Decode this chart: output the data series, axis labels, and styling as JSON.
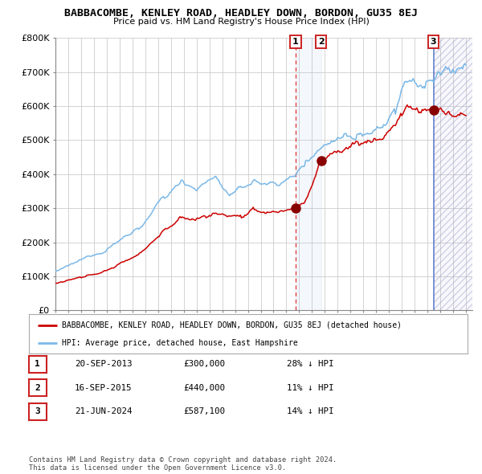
{
  "title": "BABBACOMBE, KENLEY ROAD, HEADLEY DOWN, BORDON, GU35 8EJ",
  "subtitle": "Price paid vs. HM Land Registry's House Price Index (HPI)",
  "ylim": [
    0,
    800000
  ],
  "yticks": [
    0,
    100000,
    200000,
    300000,
    400000,
    500000,
    600000,
    700000,
    800000
  ],
  "ytick_labels": [
    "£0",
    "£100K",
    "£200K",
    "£300K",
    "£400K",
    "£500K",
    "£600K",
    "£700K",
    "£800K"
  ],
  "xlim_start": 1995.0,
  "xlim_end": 2027.5,
  "hpi_color": "#7ab8e8",
  "price_color": "#cc0000",
  "marker_color": "#880000",
  "sale1_year": 2013.72,
  "sale1_price": 300000,
  "sale2_year": 2015.71,
  "sale2_price": 440000,
  "sale3_year": 2024.47,
  "sale3_price": 587100,
  "legend_label1": "BABBACOMBE, KENLEY ROAD, HEADLEY DOWN, BORDON, GU35 8EJ (detached house)",
  "legend_label2": "HPI: Average price, detached house, East Hampshire",
  "table_rows": [
    [
      "1",
      "20-SEP-2013",
      "£300,000",
      "28% ↓ HPI"
    ],
    [
      "2",
      "16-SEP-2015",
      "£440,000",
      "11% ↓ HPI"
    ],
    [
      "3",
      "21-JUN-2024",
      "£587,100",
      "14% ↓ HPI"
    ]
  ],
  "footer": "Contains HM Land Registry data © Crown copyright and database right 2024.\nThis data is licensed under the Open Government Licence v3.0.",
  "background_color": "#ffffff",
  "grid_color": "#cccccc"
}
